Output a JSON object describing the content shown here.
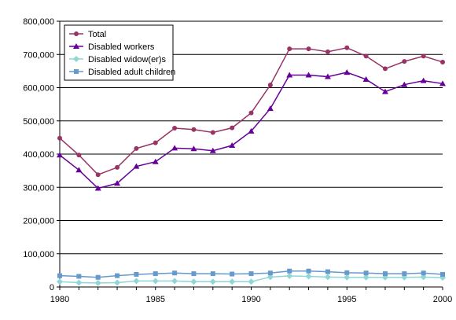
{
  "chart_data": {
    "type": "line",
    "title": "",
    "xlabel": "",
    "ylabel": "",
    "ylim": [
      0,
      800000
    ],
    "xlim": [
      1980,
      2000
    ],
    "x_ticks": [
      1980,
      1985,
      1990,
      1995,
      2000
    ],
    "y_ticks": [
      0,
      100000,
      200000,
      300000,
      400000,
      500000,
      600000,
      700000,
      800000
    ],
    "y_tick_labels": [
      "0",
      "100,000",
      "200,000",
      "300,000",
      "400,000",
      "500,000",
      "600,000",
      "700,000",
      "800,000"
    ],
    "x_tick_labels": [
      "1980",
      "1985",
      "1990",
      "1995",
      "2000"
    ],
    "grid": "horizontal",
    "legend_position": "top-left",
    "x": [
      1980,
      1981,
      1982,
      1983,
      1984,
      1985,
      1986,
      1987,
      1988,
      1989,
      1990,
      1991,
      1992,
      1993,
      1994,
      1995,
      1996,
      1997,
      1998,
      1999,
      2000
    ],
    "series": [
      {
        "name": "Total",
        "color": "#993366",
        "marker": "circle",
        "values": [
          448000,
          397000,
          338000,
          360000,
          417000,
          434000,
          478000,
          474000,
          465000,
          479000,
          524000,
          608000,
          717000,
          717000,
          708000,
          720000,
          695000,
          657000,
          679000,
          695000,
          677000
        ]
      },
      {
        "name": "Disabled workers",
        "color": "#660099",
        "marker": "triangle",
        "values": [
          397000,
          352000,
          297000,
          312000,
          363000,
          377000,
          418000,
          416000,
          410000,
          426000,
          469000,
          537000,
          638000,
          638000,
          633000,
          646000,
          625000,
          588000,
          609000,
          621000,
          612000
        ]
      },
      {
        "name": "Disabled widow(er)s",
        "color": "#8fd6d6",
        "marker": "diamond",
        "values": [
          16000,
          13000,
          12000,
          13000,
          18000,
          18000,
          18000,
          16000,
          16000,
          16000,
          16000,
          30000,
          33000,
          32000,
          30000,
          29000,
          29000,
          29000,
          29000,
          30000,
          28000
        ]
      },
      {
        "name": "Disabled adult children",
        "color": "#6699cc",
        "marker": "square",
        "values": [
          34000,
          32000,
          29000,
          34000,
          38000,
          40000,
          42000,
          40000,
          40000,
          39000,
          40000,
          42000,
          48000,
          48000,
          46000,
          43000,
          42000,
          40000,
          40000,
          42000,
          38000
        ]
      }
    ]
  }
}
